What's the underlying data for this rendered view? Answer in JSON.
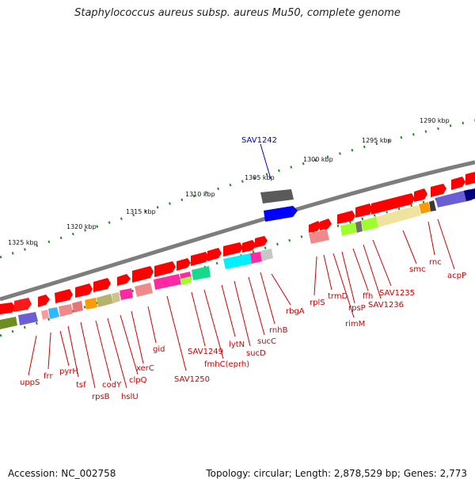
{
  "header": {
    "title": "Staphylococcus aureus subsp. aureus Mu50, complete genome"
  },
  "footer": {
    "accession": "Accession: NC_002758",
    "meta": "Topology: circular; Length: 2,878,529 bp; Genes: 2,773"
  },
  "scale_labels": [
    "1290 kbp",
    "1295 kbp",
    "1300 kbp",
    "1305 kbp",
    "1310 kbp",
    "1315 kbp",
    "1320 kbp",
    "1325 kbp"
  ],
  "selected_gene": "SAV1242",
  "gene_labels": [
    "uppS",
    "frr",
    "pyrH",
    "tsf",
    "rpsB",
    "codY",
    "hslU",
    "clpQ",
    "xerC",
    "gid",
    "SAV1250",
    "SAV1249",
    "fmhC(eprh)",
    "lytN",
    "sucD",
    "sucC",
    "rnhB",
    "rbgA",
    "rplS",
    "trmD",
    "rimM",
    "rpsP",
    "ffh",
    "SAV1236",
    "SAV1235",
    "smc",
    "rnc",
    "acpP"
  ],
  "colors": {
    "forward_strand": "#ff0000",
    "backbone": "#808080",
    "label": "#d00000",
    "selected": "#0000d0",
    "scale_dots": "#1f8a1f"
  }
}
